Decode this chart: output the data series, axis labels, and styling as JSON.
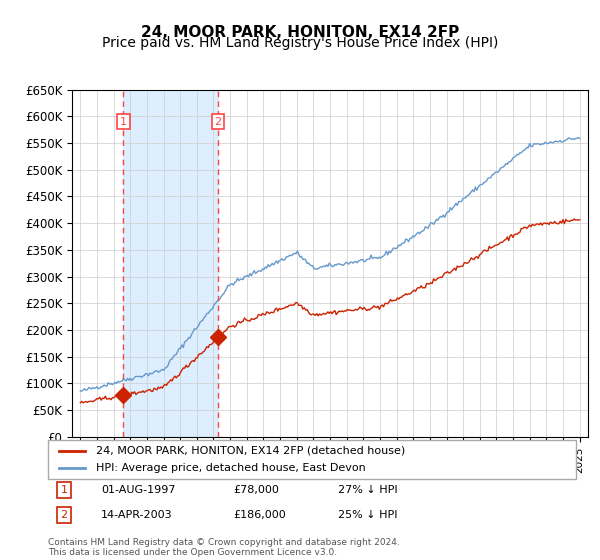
{
  "title": "24, MOOR PARK, HONITON, EX14 2FP",
  "subtitle": "Price paid vs. HM Land Registry's House Price Index (HPI)",
  "ylabel": "",
  "xlabel": "",
  "ylim": [
    0,
    650000
  ],
  "yticks": [
    0,
    50000,
    100000,
    150000,
    200000,
    250000,
    300000,
    350000,
    400000,
    450000,
    500000,
    550000,
    600000,
    650000
  ],
  "ytick_labels": [
    "£0",
    "£50K",
    "£100K",
    "£150K",
    "£200K",
    "£250K",
    "£300K",
    "£350K",
    "£400K",
    "£450K",
    "£500K",
    "£550K",
    "£600K",
    "£650K"
  ],
  "xlim_start": 1994.5,
  "xlim_end": 2025.5,
  "sale1_year": 1997.58,
  "sale1_price": 78000,
  "sale1_label": "1",
  "sale1_date": "01-AUG-1997",
  "sale1_pct": "27% ↓ HPI",
  "sale2_year": 2003.28,
  "sale2_price": 186000,
  "sale2_label": "2",
  "sale2_date": "14-APR-2003",
  "sale2_pct": "25% ↓ HPI",
  "hpi_color": "#6699cc",
  "price_color": "#cc2200",
  "vline_color": "#ff4444",
  "shade_color": "#ddeeff",
  "background_color": "#ffffff",
  "grid_color": "#cccccc",
  "legend_line1": "24, MOOR PARK, HONITON, EX14 2FP (detached house)",
  "legend_line2": "HPI: Average price, detached house, East Devon",
  "footer": "Contains HM Land Registry data © Crown copyright and database right 2024.\nThis data is licensed under the Open Government Licence v3.0.",
  "title_fontsize": 11,
  "subtitle_fontsize": 10
}
